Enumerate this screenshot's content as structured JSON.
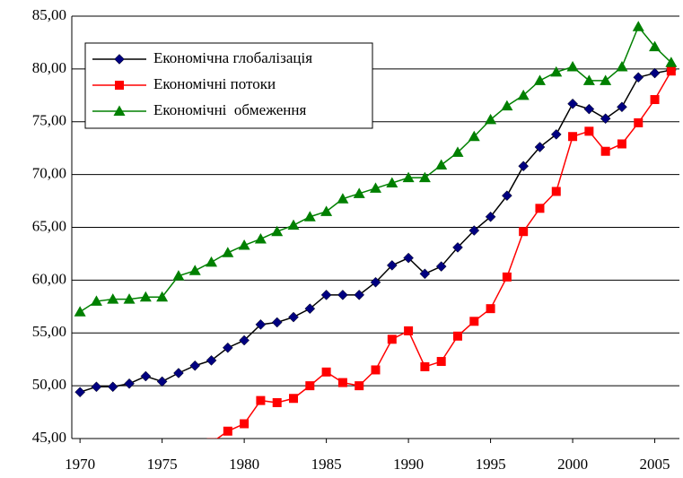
{
  "chart_data": {
    "type": "line",
    "x": [
      1970,
      1971,
      1972,
      1973,
      1974,
      1975,
      1976,
      1977,
      1978,
      1979,
      1980,
      1981,
      1982,
      1983,
      1984,
      1985,
      1986,
      1987,
      1988,
      1989,
      1990,
      1991,
      1992,
      1993,
      1994,
      1995,
      1996,
      1997,
      1998,
      1999,
      2000,
      2001,
      2002,
      2003,
      2004,
      2005,
      2006
    ],
    "series": [
      {
        "name": "Економічна глобалізація",
        "color": "#000080",
        "line_color": "#000000",
        "marker": "diamond",
        "values": [
          49.4,
          49.9,
          49.9,
          50.2,
          50.9,
          50.4,
          51.2,
          51.9,
          52.4,
          53.6,
          54.3,
          55.8,
          56.0,
          56.5,
          57.3,
          58.6,
          58.6,
          58.6,
          59.8,
          61.4,
          62.1,
          60.6,
          61.3,
          63.1,
          64.7,
          66.0,
          68.0,
          70.8,
          72.6,
          73.8,
          76.7,
          76.2,
          75.3,
          76.4,
          79.2,
          79.6,
          79.9
        ]
      },
      {
        "name": "Економічні потоки",
        "color": "#ff0000",
        "line_color": "#ff0000",
        "marker": "square",
        "values": [
          null,
          null,
          null,
          null,
          null,
          null,
          null,
          null,
          44.6,
          45.7,
          46.4,
          48.6,
          48.4,
          48.8,
          50.0,
          51.3,
          50.3,
          50.0,
          51.5,
          54.4,
          55.2,
          51.8,
          52.3,
          54.7,
          56.1,
          57.3,
          60.3,
          64.6,
          66.8,
          68.4,
          73.6,
          74.1,
          72.2,
          72.9,
          74.9,
          77.1,
          79.8
        ]
      },
      {
        "name": "Економічні  обмеження",
        "color": "#008000",
        "line_color": "#008000",
        "marker": "triangle",
        "values": [
          57.0,
          58.0,
          58.2,
          58.2,
          58.4,
          58.4,
          60.4,
          60.9,
          61.7,
          62.6,
          63.3,
          63.9,
          64.6,
          65.2,
          66.0,
          66.5,
          67.7,
          68.2,
          68.7,
          69.2,
          69.7,
          69.7,
          70.9,
          72.1,
          73.6,
          75.2,
          76.5,
          77.5,
          78.9,
          79.7,
          80.2,
          78.9,
          78.9,
          80.2,
          84.0,
          82.1,
          80.6
        ]
      }
    ],
    "xlim": [
      1969.5,
      2006.5
    ],
    "xticks": [
      1970,
      1975,
      1980,
      1985,
      1990,
      1995,
      2000,
      2005
    ],
    "ylim": [
      45,
      85
    ],
    "yticks": [
      {
        "value": 45,
        "label": "45,00"
      },
      {
        "value": 50,
        "label": "50,00"
      },
      {
        "value": 55,
        "label": "55,00"
      },
      {
        "value": 60,
        "label": "60,00"
      },
      {
        "value": 65,
        "label": "65,00"
      },
      {
        "value": 70,
        "label": "70,00"
      },
      {
        "value": 75,
        "label": "75,00"
      },
      {
        "value": 80,
        "label": "80,00"
      },
      {
        "value": 85,
        "label": "85,00"
      }
    ],
    "grid": true,
    "legend": "upper-left"
  }
}
